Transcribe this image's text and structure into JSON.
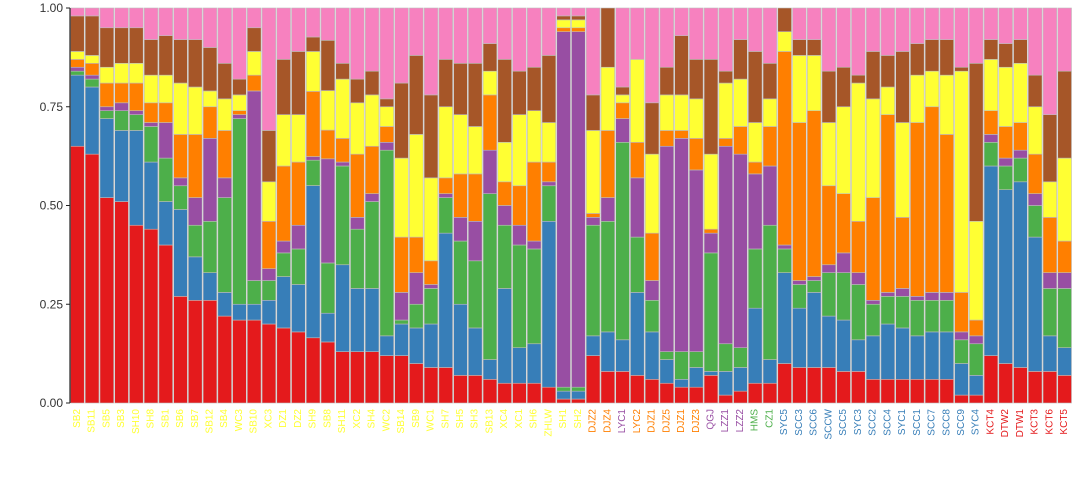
{
  "chart_data": {
    "type": "bar",
    "stacked": true,
    "orientation": "vertical",
    "ylim": [
      0,
      1
    ],
    "yticks": [
      "0.00",
      "0.25",
      "0.50",
      "0.75",
      "1.00"
    ],
    "title": "",
    "xlabel": "",
    "ylabel": "",
    "grid": false,
    "legend": "none",
    "series_colors": [
      "#e41a1c",
      "#377eb8",
      "#4daf4a",
      "#984ea3",
      "#ff7f00",
      "#ffff33",
      "#a65628",
      "#f781bf"
    ],
    "bar_edge_color": "#bdbdbd",
    "categories": [
      {
        "label": "SB2",
        "color": "#ffff33",
        "values": [
          0.65,
          0.18,
          0.01,
          0.01,
          0.02,
          0.02,
          0.09,
          0.02
        ]
      },
      {
        "label": "SB11",
        "color": "#ffff33",
        "values": [
          0.63,
          0.17,
          0.02,
          0.01,
          0.03,
          0.02,
          0.1,
          0.02
        ]
      },
      {
        "label": "SB5",
        "color": "#ffff33",
        "values": [
          0.52,
          0.2,
          0.02,
          0.01,
          0.06,
          0.04,
          0.1,
          0.05
        ]
      },
      {
        "label": "SB3",
        "color": "#ffff33",
        "values": [
          0.51,
          0.18,
          0.05,
          0.02,
          0.05,
          0.05,
          0.09,
          0.05
        ]
      },
      {
        "label": "SH10",
        "color": "#ffff33",
        "values": [
          0.45,
          0.24,
          0.04,
          0.01,
          0.07,
          0.05,
          0.09,
          0.05
        ]
      },
      {
        "label": "SH8",
        "color": "#ffff33",
        "values": [
          0.44,
          0.17,
          0.09,
          0.01,
          0.05,
          0.07,
          0.09,
          0.08
        ]
      },
      {
        "label": "SB1",
        "color": "#ffff33",
        "values": [
          0.4,
          0.11,
          0.11,
          0.09,
          0.05,
          0.07,
          0.1,
          0.07
        ]
      },
      {
        "label": "SB6",
        "color": "#ffff33",
        "values": [
          0.27,
          0.22,
          0.06,
          0.02,
          0.11,
          0.13,
          0.11,
          0.08
        ]
      },
      {
        "label": "SB7",
        "color": "#ffff33",
        "values": [
          0.26,
          0.11,
          0.08,
          0.07,
          0.16,
          0.12,
          0.12,
          0.08
        ]
      },
      {
        "label": "SB12",
        "color": "#ffff33",
        "values": [
          0.26,
          0.07,
          0.13,
          0.21,
          0.08,
          0.04,
          0.11,
          0.1
        ]
      },
      {
        "label": "SB4",
        "color": "#ffff33",
        "values": [
          0.22,
          0.06,
          0.24,
          0.05,
          0.12,
          0.08,
          0.09,
          0.14
        ]
      },
      {
        "label": "WC3",
        "color": "#ffff33",
        "values": [
          0.21,
          0.04,
          0.47,
          0.01,
          0.01,
          0.04,
          0.04,
          0.18
        ]
      },
      {
        "label": "SB10",
        "color": "#ffff33",
        "values": [
          0.21,
          0.04,
          0.06,
          0.48,
          0.04,
          0.06,
          0.06,
          0.05
        ]
      },
      {
        "label": "XC3",
        "color": "#ffff33",
        "values": [
          0.2,
          0.06,
          0.05,
          0.03,
          0.12,
          0.1,
          0.13,
          0.31
        ]
      },
      {
        "label": "DZ1",
        "color": "#ffff33",
        "values": [
          0.19,
          0.13,
          0.06,
          0.03,
          0.19,
          0.13,
          0.14,
          0.13
        ]
      },
      {
        "label": "DZ2",
        "color": "#ffff33",
        "values": [
          0.18,
          0.12,
          0.09,
          0.06,
          0.16,
          0.12,
          0.16,
          0.11
        ]
      },
      {
        "label": "SH9",
        "color": "#ffff33",
        "values": [
          0.18,
          0.42,
          0.07,
          0.01,
          0.18,
          0.11,
          0.04,
          0.08
        ]
      },
      {
        "label": "SB8",
        "color": "#ffff33",
        "values": [
          0.17,
          0.08,
          0.14,
          0.29,
          0.08,
          0.11,
          0.14,
          0.09
        ]
      },
      {
        "label": "SH11",
        "color": "#ffff33",
        "values": [
          0.13,
          0.22,
          0.25,
          0.01,
          0.06,
          0.15,
          0.04,
          0.14
        ]
      },
      {
        "label": "XC2",
        "color": "#ffff33",
        "values": [
          0.13,
          0.16,
          0.15,
          0.03,
          0.16,
          0.13,
          0.06,
          0.18
        ]
      },
      {
        "label": "SH4",
        "color": "#ffff33",
        "values": [
          0.13,
          0.16,
          0.22,
          0.02,
          0.12,
          0.13,
          0.06,
          0.16
        ]
      },
      {
        "label": "WC2",
        "color": "#ffff33",
        "values": [
          0.12,
          0.05,
          0.47,
          0.02,
          0.04,
          0.05,
          0.02,
          0.23
        ]
      },
      {
        "label": "SB14",
        "color": "#ffff33",
        "values": [
          0.12,
          0.08,
          0.01,
          0.07,
          0.14,
          0.2,
          0.19,
          0.19
        ]
      },
      {
        "label": "SB9",
        "color": "#ffff33",
        "values": [
          0.1,
          0.09,
          0.06,
          0.08,
          0.09,
          0.26,
          0.2,
          0.12
        ]
      },
      {
        "label": "WC1",
        "color": "#ffff33",
        "values": [
          0.09,
          0.11,
          0.09,
          0.01,
          0.06,
          0.21,
          0.21,
          0.22
        ]
      },
      {
        "label": "SH7",
        "color": "#ffff33",
        "values": [
          0.09,
          0.34,
          0.09,
          0.01,
          0.04,
          0.18,
          0.12,
          0.13
        ]
      },
      {
        "label": "SH5",
        "color": "#ffff33",
        "values": [
          0.07,
          0.18,
          0.16,
          0.06,
          0.11,
          0.15,
          0.13,
          0.14
        ]
      },
      {
        "label": "SH3",
        "color": "#ffff33",
        "values": [
          0.07,
          0.12,
          0.17,
          0.1,
          0.12,
          0.12,
          0.16,
          0.14
        ]
      },
      {
        "label": "SB13",
        "color": "#ffff33",
        "values": [
          0.06,
          0.05,
          0.42,
          0.11,
          0.14,
          0.06,
          0.07,
          0.09
        ]
      },
      {
        "label": "XC4",
        "color": "#ffff33",
        "values": [
          0.05,
          0.24,
          0.16,
          0.05,
          0.06,
          0.1,
          0.21,
          0.13
        ]
      },
      {
        "label": "XC1",
        "color": "#ffff33",
        "values": [
          0.05,
          0.09,
          0.26,
          0.05,
          0.1,
          0.18,
          0.11,
          0.16
        ]
      },
      {
        "label": "SH6",
        "color": "#ffff33",
        "values": [
          0.05,
          0.1,
          0.24,
          0.02,
          0.2,
          0.13,
          0.11,
          0.15
        ]
      },
      {
        "label": "ZHLW",
        "color": "#ffff33",
        "values": [
          0.04,
          0.42,
          0.09,
          0.01,
          0.05,
          0.1,
          0.17,
          0.12
        ]
      },
      {
        "label": "SH1",
        "color": "#ffff33",
        "values": [
          0.01,
          0.02,
          0.01,
          0.9,
          0.01,
          0.02,
          0.01,
          0.02
        ]
      },
      {
        "label": "SH2",
        "color": "#ffff33",
        "values": [
          0.01,
          0.02,
          0.01,
          0.9,
          0.01,
          0.02,
          0.01,
          0.02
        ]
      },
      {
        "label": "DJZ2",
        "color": "#ff7f00",
        "values": [
          0.12,
          0.05,
          0.28,
          0.02,
          0.01,
          0.21,
          0.09,
          0.22
        ]
      },
      {
        "label": "DJZ4",
        "color": "#ff7f00",
        "values": [
          0.08,
          0.1,
          0.28,
          0.06,
          0.17,
          0.16,
          0.15,
          0.0
        ]
      },
      {
        "label": "LYC1",
        "color": "#984ea3",
        "values": [
          0.08,
          0.08,
          0.5,
          0.06,
          0.04,
          0.02,
          0.02,
          0.2
        ]
      },
      {
        "label": "LYC2",
        "color": "#ff7f00",
        "values": [
          0.07,
          0.21,
          0.14,
          0.15,
          0.09,
          0.21,
          0.0,
          0.13
        ]
      },
      {
        "label": "DJZ1",
        "color": "#ff7f00",
        "values": [
          0.06,
          0.12,
          0.08,
          0.05,
          0.12,
          0.2,
          0.13,
          0.24
        ]
      },
      {
        "label": "DJZ5",
        "color": "#ff7f00",
        "values": [
          0.05,
          0.06,
          0.02,
          0.52,
          0.04,
          0.09,
          0.07,
          0.15
        ]
      },
      {
        "label": "DJZ1",
        "color": "#ff7f00",
        "values": [
          0.04,
          0.02,
          0.07,
          0.54,
          0.02,
          0.09,
          0.15,
          0.07
        ]
      },
      {
        "label": "DJZ3",
        "color": "#ff7f00",
        "values": [
          0.04,
          0.05,
          0.04,
          0.46,
          0.08,
          0.1,
          0.1,
          0.13
        ]
      },
      {
        "label": "QGJ",
        "color": "#984ea3",
        "values": [
          0.07,
          0.01,
          0.3,
          0.05,
          0.01,
          0.19,
          0.24,
          0.13
        ]
      },
      {
        "label": "LZZ1",
        "color": "#984ea3",
        "values": [
          0.02,
          0.06,
          0.07,
          0.5,
          0.02,
          0.14,
          0.03,
          0.16
        ]
      },
      {
        "label": "LZZ2",
        "color": "#984ea3",
        "values": [
          0.03,
          0.06,
          0.05,
          0.49,
          0.07,
          0.12,
          0.1,
          0.08
        ]
      },
      {
        "label": "HMS",
        "color": "#4daf4a",
        "values": [
          0.05,
          0.19,
          0.15,
          0.19,
          0.03,
          0.1,
          0.18,
          0.11
        ]
      },
      {
        "label": "CZ1",
        "color": "#4daf4a",
        "values": [
          0.05,
          0.06,
          0.34,
          0.15,
          0.1,
          0.07,
          0.09,
          0.14
        ]
      },
      {
        "label": "SYC5",
        "color": "#377eb8",
        "values": [
          0.1,
          0.23,
          0.06,
          0.01,
          0.49,
          0.05,
          0.06,
          0.0
        ]
      },
      {
        "label": "SCC3",
        "color": "#377eb8",
        "values": [
          0.09,
          0.15,
          0.06,
          0.01,
          0.4,
          0.17,
          0.04,
          0.08
        ]
      },
      {
        "label": "SCC6",
        "color": "#377eb8",
        "values": [
          0.09,
          0.19,
          0.03,
          0.01,
          0.42,
          0.14,
          0.04,
          0.08
        ]
      },
      {
        "label": "SCCW",
        "color": "#377eb8",
        "values": [
          0.09,
          0.13,
          0.11,
          0.02,
          0.2,
          0.16,
          0.13,
          0.16
        ]
      },
      {
        "label": "SCC5",
        "color": "#377eb8",
        "values": [
          0.08,
          0.13,
          0.12,
          0.05,
          0.15,
          0.22,
          0.1,
          0.15
        ]
      },
      {
        "label": "SYC3",
        "color": "#377eb8",
        "values": [
          0.08,
          0.08,
          0.14,
          0.03,
          0.13,
          0.35,
          0.02,
          0.17
        ]
      },
      {
        "label": "SCC2",
        "color": "#377eb8",
        "values": [
          0.06,
          0.11,
          0.08,
          0.01,
          0.26,
          0.25,
          0.12,
          0.11
        ]
      },
      {
        "label": "SCC4",
        "color": "#377eb8",
        "values": [
          0.06,
          0.14,
          0.07,
          0.01,
          0.45,
          0.07,
          0.08,
          0.12
        ]
      },
      {
        "label": "SYC1",
        "color": "#377eb8",
        "values": [
          0.06,
          0.13,
          0.08,
          0.02,
          0.18,
          0.24,
          0.18,
          0.11
        ]
      },
      {
        "label": "SCC1",
        "color": "#377eb8",
        "values": [
          0.06,
          0.11,
          0.09,
          0.01,
          0.44,
          0.12,
          0.08,
          0.09
        ]
      },
      {
        "label": "SCC7",
        "color": "#377eb8",
        "values": [
          0.06,
          0.12,
          0.08,
          0.02,
          0.47,
          0.09,
          0.08,
          0.08
        ]
      },
      {
        "label": "SCC8",
        "color": "#377eb8",
        "values": [
          0.06,
          0.12,
          0.08,
          0.02,
          0.4,
          0.15,
          0.09,
          0.08
        ]
      },
      {
        "label": "SCC9",
        "color": "#377eb8",
        "values": [
          0.02,
          0.08,
          0.06,
          0.02,
          0.1,
          0.56,
          0.01,
          0.15
        ]
      },
      {
        "label": "SYC4",
        "color": "#377eb8",
        "values": [
          0.02,
          0.05,
          0.08,
          0.02,
          0.04,
          0.25,
          0.4,
          0.14
        ]
      },
      {
        "label": "KCT4",
        "color": "#e41a1c",
        "values": [
          0.12,
          0.48,
          0.06,
          0.02,
          0.06,
          0.13,
          0.05,
          0.08
        ]
      },
      {
        "label": "DTW2",
        "color": "#e41a1c",
        "values": [
          0.1,
          0.44,
          0.06,
          0.02,
          0.08,
          0.15,
          0.06,
          0.09
        ]
      },
      {
        "label": "DTW1",
        "color": "#e41a1c",
        "values": [
          0.09,
          0.47,
          0.06,
          0.02,
          0.07,
          0.15,
          0.06,
          0.08
        ]
      },
      {
        "label": "KCT3",
        "color": "#e41a1c",
        "values": [
          0.08,
          0.34,
          0.08,
          0.03,
          0.1,
          0.12,
          0.08,
          0.17
        ]
      },
      {
        "label": "KCT6",
        "color": "#e41a1c",
        "values": [
          0.08,
          0.09,
          0.12,
          0.04,
          0.14,
          0.09,
          0.17,
          0.27
        ]
      },
      {
        "label": "KCT5",
        "color": "#e41a1c",
        "values": [
          0.07,
          0.07,
          0.15,
          0.04,
          0.08,
          0.21,
          0.22,
          0.16
        ]
      }
    ]
  }
}
